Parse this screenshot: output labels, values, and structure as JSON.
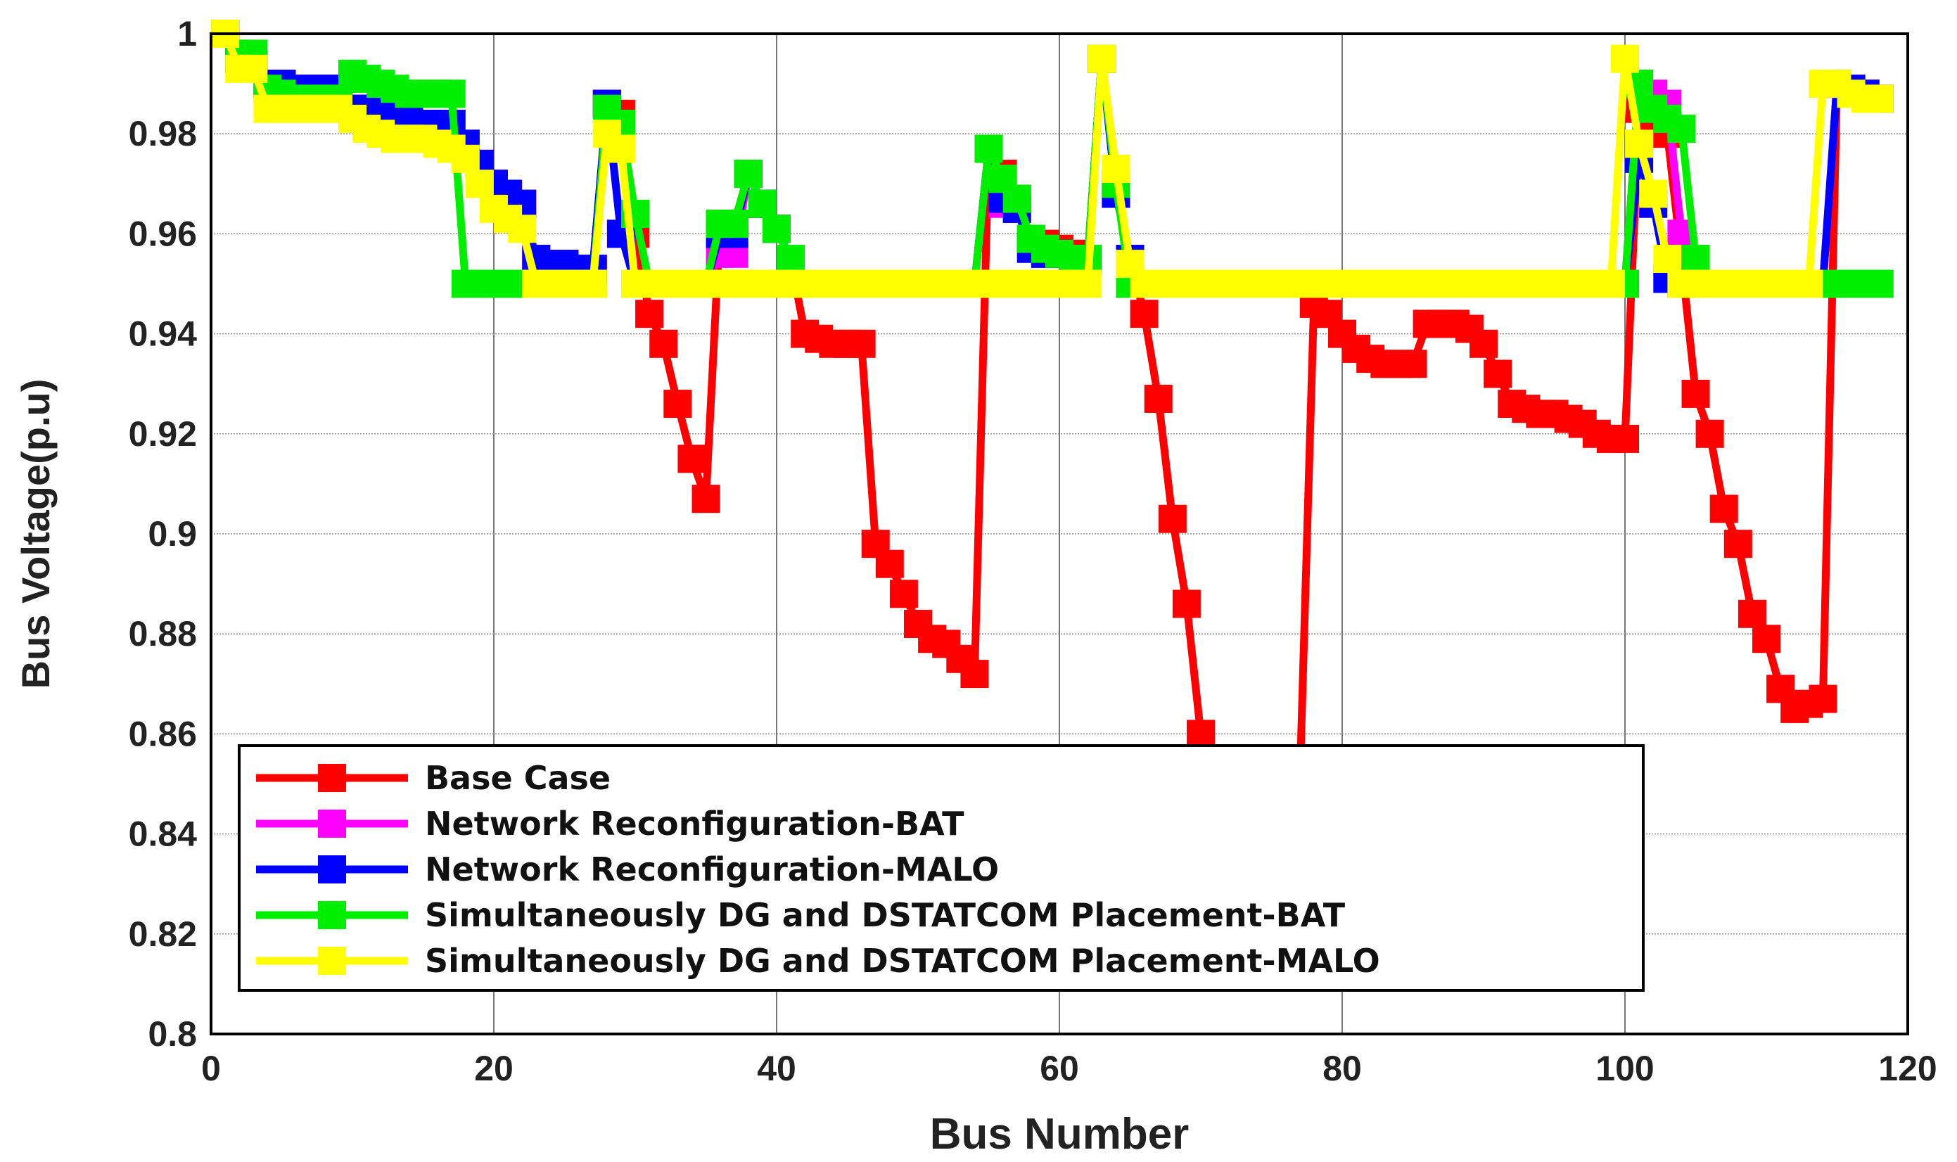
{
  "chart_data": {
    "type": "line",
    "title": "",
    "xlabel": "Bus Number",
    "ylabel": "Bus Voltage(p.u)",
    "xlim": [
      0,
      120
    ],
    "ylim": [
      0.8,
      1.0
    ],
    "xticks": [
      0,
      20,
      40,
      60,
      80,
      100,
      120
    ],
    "xtick_labels": [
      "0",
      "20",
      "40",
      "60",
      "80",
      "100",
      "120"
    ],
    "yticks": [
      0.8,
      0.82,
      0.84,
      0.86,
      0.88,
      0.9,
      0.92,
      0.94,
      0.96,
      0.98,
      1.0
    ],
    "ytick_labels": [
      "0.8",
      "0.82",
      "0.84",
      "0.86",
      "0.88",
      "0.9",
      "0.92",
      "0.94",
      "0.96",
      "0.98",
      "1"
    ],
    "grid": true,
    "legend_position": "bottom-left",
    "series": [
      {
        "name": "Base Case",
        "color": "#ff0000",
        "x": [
          1,
          2,
          3,
          4,
          5,
          6,
          7,
          8,
          9,
          10,
          11,
          12,
          13,
          14,
          15,
          16,
          17,
          18,
          19,
          20,
          21,
          22,
          23,
          24,
          25,
          26,
          27,
          28,
          29,
          30,
          31,
          32,
          33,
          34,
          35,
          36,
          37,
          38,
          39,
          40,
          41,
          42,
          43,
          44,
          45,
          46,
          47,
          48,
          49,
          50,
          51,
          52,
          53,
          54,
          55,
          56,
          57,
          58,
          59,
          60,
          61,
          62,
          63,
          64,
          65,
          66,
          67,
          68,
          69,
          70,
          71,
          72,
          73,
          74,
          75,
          76,
          77,
          78,
          79,
          80,
          81,
          82,
          83,
          84,
          85,
          86,
          87,
          88,
          89,
          90,
          91,
          92,
          93,
          94,
          95,
          96,
          97,
          98,
          99,
          100,
          101,
          102,
          103,
          104,
          105,
          106,
          107,
          108,
          109,
          110,
          111,
          112,
          113,
          114,
          115,
          116,
          117,
          118
        ],
        "y": [
          1.0,
          0.995,
          0.994,
          0.99,
          0.99,
          0.989,
          0.989,
          0.989,
          0.989,
          0.985,
          0.985,
          0.984,
          0.983,
          0.983,
          0.982,
          0.982,
          0.982,
          0.978,
          0.974,
          0.97,
          0.968,
          0.966,
          0.955,
          0.954,
          0.954,
          0.953,
          0.953,
          0.986,
          0.984,
          0.96,
          0.944,
          0.938,
          0.926,
          0.915,
          0.907,
          0.962,
          0.962,
          0.972,
          0.966,
          0.961,
          0.955,
          0.94,
          0.939,
          0.938,
          0.938,
          0.938,
          0.898,
          0.894,
          0.888,
          0.882,
          0.879,
          0.878,
          0.875,
          0.872,
          0.977,
          0.972,
          0.967,
          0.959,
          0.958,
          0.957,
          0.956,
          0.955,
          0.995,
          0.97,
          0.955,
          0.944,
          0.927,
          0.903,
          0.886,
          0.86,
          0.845,
          0.84,
          0.838,
          0.838,
          0.838,
          0.84,
          0.85,
          0.946,
          0.944,
          0.94,
          0.937,
          0.935,
          0.934,
          0.934,
          0.934,
          0.942,
          0.942,
          0.942,
          0.941,
          0.938,
          0.932,
          0.926,
          0.925,
          0.924,
          0.924,
          0.923,
          0.922,
          0.92,
          0.919,
          0.919,
          0.985,
          0.983,
          0.98,
          0.955,
          0.928,
          0.92,
          0.905,
          0.898,
          0.884,
          0.879,
          0.869,
          0.865,
          0.866,
          0.867,
          0.99,
          0.989,
          0.988,
          0.987
        ]
      },
      {
        "name": "Network Reconfiguration-BAT",
        "color": "#ff00ff",
        "x": [
          1,
          2,
          3,
          4,
          5,
          6,
          7,
          8,
          9,
          10,
          11,
          12,
          13,
          14,
          15,
          16,
          17,
          18,
          19,
          20,
          21,
          22,
          23,
          24,
          25,
          26,
          27,
          28,
          29,
          30,
          31,
          32,
          33,
          34,
          35,
          36,
          37,
          38,
          39,
          40,
          41,
          42,
          43,
          44,
          45,
          46,
          47,
          48,
          49,
          50,
          51,
          52,
          53,
          54,
          55,
          56,
          57,
          58,
          59,
          60,
          61,
          62,
          63,
          64,
          65,
          66,
          67,
          68,
          69,
          70,
          71,
          72,
          73,
          74,
          75,
          76,
          77,
          78,
          79,
          80,
          81,
          82,
          83,
          84,
          85,
          86,
          87,
          88,
          89,
          90,
          91,
          92,
          93,
          94,
          95,
          96,
          97,
          98,
          99,
          100,
          101,
          102,
          103,
          104,
          105,
          106,
          107,
          108,
          109,
          110,
          111,
          112,
          113,
          114,
          115,
          116,
          117,
          118
        ],
        "y": [
          1.0,
          0.995,
          0.994,
          0.99,
          0.99,
          0.989,
          0.989,
          0.989,
          0.989,
          0.985,
          0.985,
          0.984,
          0.983,
          0.983,
          0.982,
          0.982,
          0.982,
          0.978,
          0.974,
          0.97,
          0.968,
          0.966,
          0.955,
          0.954,
          0.954,
          0.953,
          0.953,
          0.986,
          0.96,
          0.95,
          0.95,
          0.95,
          0.95,
          0.95,
          0.95,
          0.956,
          0.956,
          0.972,
          0.966,
          0.961,
          0.955,
          0.95,
          0.95,
          0.95,
          0.95,
          0.95,
          0.95,
          0.95,
          0.95,
          0.95,
          0.95,
          0.95,
          0.95,
          0.95,
          0.977,
          0.966,
          0.965,
          0.957,
          0.956,
          0.956,
          0.955,
          0.955,
          0.995,
          0.968,
          0.955,
          0.95,
          0.95,
          0.95,
          0.95,
          0.95,
          0.95,
          0.95,
          0.95,
          0.95,
          0.95,
          0.95,
          0.95,
          0.95,
          0.95,
          0.95,
          0.95,
          0.95,
          0.95,
          0.95,
          0.95,
          0.95,
          0.95,
          0.95,
          0.95,
          0.95,
          0.95,
          0.95,
          0.95,
          0.95,
          0.95,
          0.95,
          0.95,
          0.95,
          0.95,
          0.95,
          0.99,
          0.988,
          0.986,
          0.96,
          0.95,
          0.95,
          0.95,
          0.95,
          0.95,
          0.95,
          0.95,
          0.95,
          0.95,
          0.95,
          0.99,
          0.989,
          0.988,
          0.987
        ]
      },
      {
        "name": "Network Reconfiguration-MALO",
        "color": "#0000ff",
        "x": [
          1,
          2,
          3,
          4,
          5,
          6,
          7,
          8,
          9,
          10,
          11,
          12,
          13,
          14,
          15,
          16,
          17,
          18,
          19,
          20,
          21,
          22,
          23,
          24,
          25,
          26,
          27,
          28,
          29,
          30,
          31,
          32,
          33,
          34,
          35,
          36,
          37,
          38,
          39,
          40,
          41,
          42,
          43,
          44,
          45,
          46,
          47,
          48,
          49,
          50,
          51,
          52,
          53,
          54,
          55,
          56,
          57,
          58,
          59,
          60,
          61,
          62,
          63,
          64,
          65,
          66,
          67,
          68,
          69,
          70,
          71,
          72,
          73,
          74,
          75,
          76,
          77,
          78,
          79,
          80,
          81,
          82,
          83,
          84,
          85,
          86,
          87,
          88,
          89,
          90,
          91,
          92,
          93,
          94,
          95,
          96,
          97,
          98,
          99,
          100,
          101,
          102,
          103,
          104,
          105,
          106,
          107,
          108,
          109,
          110,
          111,
          112,
          113,
          114,
          115,
          116,
          117,
          118
        ],
        "y": [
          1.0,
          0.995,
          0.994,
          0.99,
          0.99,
          0.989,
          0.989,
          0.989,
          0.989,
          0.985,
          0.985,
          0.984,
          0.983,
          0.983,
          0.982,
          0.982,
          0.982,
          0.978,
          0.974,
          0.97,
          0.968,
          0.966,
          0.955,
          0.954,
          0.954,
          0.953,
          0.953,
          0.986,
          0.96,
          0.95,
          0.95,
          0.95,
          0.95,
          0.95,
          0.95,
          0.96,
          0.96,
          0.972,
          0.966,
          0.961,
          0.955,
          0.95,
          0.95,
          0.95,
          0.95,
          0.95,
          0.95,
          0.95,
          0.95,
          0.95,
          0.95,
          0.95,
          0.95,
          0.95,
          0.977,
          0.967,
          0.965,
          0.957,
          0.956,
          0.956,
          0.955,
          0.955,
          0.995,
          0.968,
          0.955,
          0.95,
          0.95,
          0.95,
          0.95,
          0.95,
          0.95,
          0.95,
          0.95,
          0.95,
          0.95,
          0.95,
          0.95,
          0.95,
          0.95,
          0.95,
          0.95,
          0.95,
          0.95,
          0.95,
          0.95,
          0.95,
          0.95,
          0.95,
          0.95,
          0.95,
          0.95,
          0.95,
          0.95,
          0.95,
          0.95,
          0.95,
          0.95,
          0.95,
          0.95,
          0.95,
          0.975,
          0.966,
          0.951,
          0.95,
          0.95,
          0.95,
          0.95,
          0.95,
          0.95,
          0.95,
          0.95,
          0.95,
          0.95,
          0.95,
          0.99,
          0.989,
          0.988,
          0.987
        ]
      },
      {
        "name": "Simultaneously DG and DSTATCOM Placement-BAT",
        "color": "#00ee00",
        "x": [
          1,
          2,
          3,
          4,
          5,
          6,
          7,
          8,
          9,
          10,
          11,
          12,
          13,
          14,
          15,
          16,
          17,
          18,
          19,
          20,
          21,
          22,
          23,
          24,
          25,
          26,
          27,
          28,
          29,
          30,
          31,
          32,
          33,
          34,
          35,
          36,
          37,
          38,
          39,
          40,
          41,
          42,
          43,
          44,
          45,
          46,
          47,
          48,
          49,
          50,
          51,
          52,
          53,
          54,
          55,
          56,
          57,
          58,
          59,
          60,
          61,
          62,
          63,
          64,
          65,
          66,
          67,
          68,
          69,
          70,
          71,
          72,
          73,
          74,
          75,
          76,
          77,
          78,
          79,
          80,
          81,
          82,
          83,
          84,
          85,
          86,
          87,
          88,
          89,
          90,
          91,
          92,
          93,
          94,
          95,
          96,
          97,
          98,
          99,
          100,
          101,
          102,
          103,
          104,
          105,
          106,
          107,
          108,
          109,
          110,
          111,
          112,
          113,
          114,
          115,
          116,
          117,
          118
        ],
        "y": [
          1.0,
          0.996,
          0.996,
          0.989,
          0.988,
          0.987,
          0.987,
          0.987,
          0.987,
          0.992,
          0.991,
          0.99,
          0.989,
          0.988,
          0.988,
          0.988,
          0.988,
          0.95,
          0.95,
          0.95,
          0.95,
          0.95,
          0.95,
          0.95,
          0.95,
          0.95,
          0.95,
          0.985,
          0.982,
          0.964,
          0.95,
          0.95,
          0.95,
          0.95,
          0.95,
          0.962,
          0.962,
          0.972,
          0.966,
          0.961,
          0.955,
          0.95,
          0.95,
          0.95,
          0.95,
          0.95,
          0.95,
          0.95,
          0.95,
          0.95,
          0.95,
          0.95,
          0.95,
          0.95,
          0.977,
          0.971,
          0.967,
          0.959,
          0.957,
          0.956,
          0.955,
          0.955,
          0.995,
          0.97,
          0.95,
          0.95,
          0.95,
          0.95,
          0.95,
          0.95,
          0.95,
          0.95,
          0.95,
          0.95,
          0.95,
          0.95,
          0.95,
          0.95,
          0.95,
          0.95,
          0.95,
          0.95,
          0.95,
          0.95,
          0.95,
          0.95,
          0.95,
          0.95,
          0.95,
          0.95,
          0.95,
          0.95,
          0.95,
          0.95,
          0.95,
          0.95,
          0.95,
          0.95,
          0.95,
          0.95,
          0.99,
          0.985,
          0.983,
          0.981,
          0.955,
          0.95,
          0.95,
          0.95,
          0.95,
          0.95,
          0.95,
          0.95,
          0.95,
          0.95,
          0.95,
          0.95,
          0.95,
          0.95
        ]
      },
      {
        "name": "Simultaneously DG and DSTATCOM Placement-MALO",
        "color": "#ffff00",
        "x": [
          1,
          2,
          3,
          4,
          5,
          6,
          7,
          8,
          9,
          10,
          11,
          12,
          13,
          14,
          15,
          16,
          17,
          18,
          19,
          20,
          21,
          22,
          23,
          24,
          25,
          26,
          27,
          28,
          29,
          30,
          31,
          32,
          33,
          34,
          35,
          36,
          37,
          38,
          39,
          40,
          41,
          42,
          43,
          44,
          45,
          46,
          47,
          48,
          49,
          50,
          51,
          52,
          53,
          54,
          55,
          56,
          57,
          58,
          59,
          60,
          61,
          62,
          63,
          64,
          65,
          66,
          67,
          68,
          69,
          70,
          71,
          72,
          73,
          74,
          75,
          76,
          77,
          78,
          79,
          80,
          81,
          82,
          83,
          84,
          85,
          86,
          87,
          88,
          89,
          90,
          91,
          92,
          93,
          94,
          95,
          96,
          97,
          98,
          99,
          100,
          101,
          102,
          103,
          104,
          105,
          106,
          107,
          108,
          109,
          110,
          111,
          112,
          113,
          114,
          115,
          116,
          117,
          118
        ],
        "y": [
          1.0,
          0.993,
          0.993,
          0.985,
          0.985,
          0.985,
          0.985,
          0.985,
          0.985,
          0.983,
          0.981,
          0.98,
          0.979,
          0.979,
          0.979,
          0.978,
          0.977,
          0.975,
          0.97,
          0.965,
          0.963,
          0.961,
          0.95,
          0.95,
          0.95,
          0.95,
          0.95,
          0.98,
          0.977,
          0.95,
          0.95,
          0.95,
          0.95,
          0.95,
          0.95,
          0.95,
          0.95,
          0.95,
          0.95,
          0.95,
          0.95,
          0.95,
          0.95,
          0.95,
          0.95,
          0.95,
          0.95,
          0.95,
          0.95,
          0.95,
          0.95,
          0.95,
          0.95,
          0.95,
          0.95,
          0.95,
          0.95,
          0.95,
          0.95,
          0.95,
          0.95,
          0.95,
          0.995,
          0.973,
          0.954,
          0.95,
          0.95,
          0.95,
          0.95,
          0.95,
          0.95,
          0.95,
          0.95,
          0.95,
          0.95,
          0.95,
          0.95,
          0.95,
          0.95,
          0.95,
          0.95,
          0.95,
          0.95,
          0.95,
          0.95,
          0.95,
          0.95,
          0.95,
          0.95,
          0.95,
          0.95,
          0.95,
          0.95,
          0.95,
          0.95,
          0.95,
          0.95,
          0.95,
          0.95,
          0.995,
          0.978,
          0.968,
          0.955,
          0.95,
          0.95,
          0.95,
          0.95,
          0.95,
          0.95,
          0.95,
          0.95,
          0.95,
          0.95,
          0.99,
          0.99,
          0.988,
          0.987,
          0.987
        ]
      }
    ]
  }
}
